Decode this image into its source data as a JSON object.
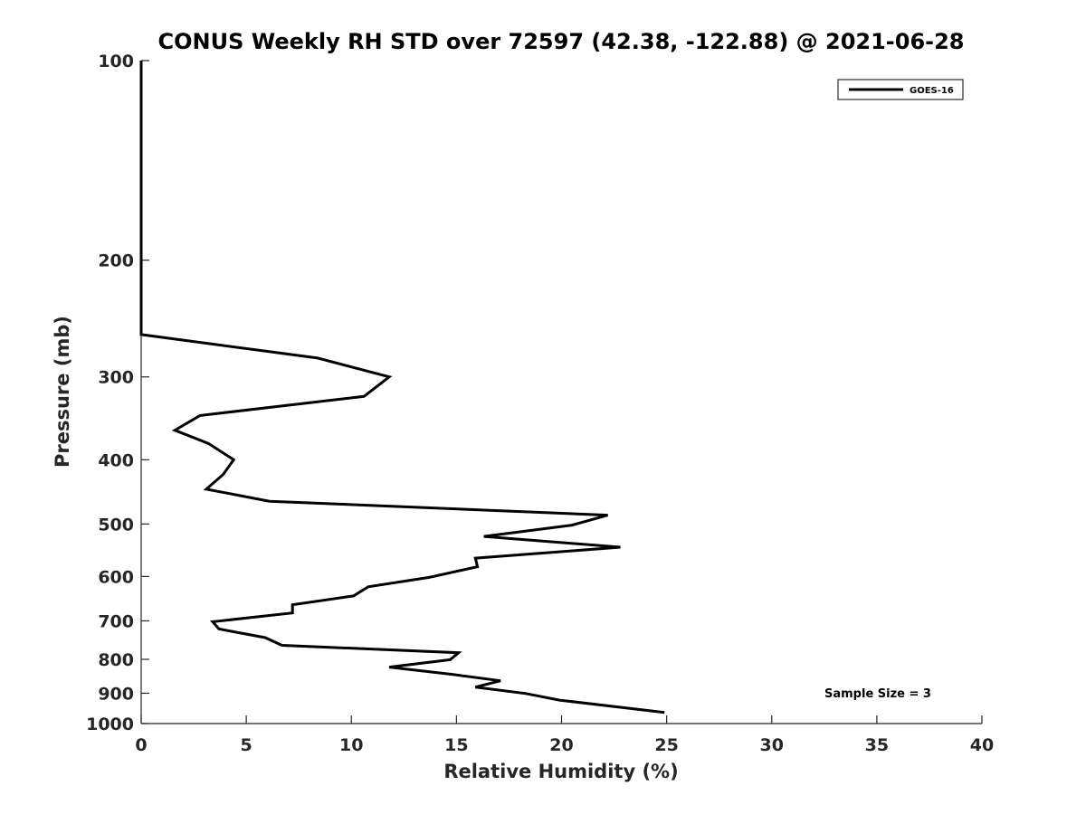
{
  "chart_data": {
    "type": "line",
    "title": "CONUS Weekly RH STD over 72597 (42.38, -122.88) @ 2021-06-28",
    "xlabel": "Relative Humidity (%)",
    "ylabel": "Pressure (mb)",
    "xlim": [
      0,
      40
    ],
    "ylim": [
      100,
      1000
    ],
    "y_scale": "log",
    "y_reversed": true,
    "x_ticks": [
      "0",
      "5",
      "10",
      "15",
      "20",
      "25",
      "30",
      "35",
      "40"
    ],
    "y_ticks": [
      "100",
      "200",
      "300",
      "400",
      "500",
      "600",
      "700",
      "800",
      "900",
      "1000"
    ],
    "grid": false,
    "legend_position": "top-right",
    "annotation": "Sample Size = 3",
    "series": [
      {
        "name": "GOES-16",
        "color": "#000000",
        "points": [
          {
            "x": 0,
            "y": 100
          },
          {
            "x": 0,
            "y": 200
          },
          {
            "x": 0,
            "y": 259
          },
          {
            "x": 8.4,
            "y": 281
          },
          {
            "x": 11.8,
            "y": 300
          },
          {
            "x": 10.6,
            "y": 321
          },
          {
            "x": 2.8,
            "y": 343
          },
          {
            "x": 1.6,
            "y": 361
          },
          {
            "x": 3.2,
            "y": 378
          },
          {
            "x": 4.4,
            "y": 400
          },
          {
            "x": 3.9,
            "y": 421
          },
          {
            "x": 3.1,
            "y": 443
          },
          {
            "x": 6.1,
            "y": 462
          },
          {
            "x": 22.2,
            "y": 485
          },
          {
            "x": 20.5,
            "y": 502
          },
          {
            "x": 16.3,
            "y": 522
          },
          {
            "x": 22.8,
            "y": 542
          },
          {
            "x": 15.9,
            "y": 563
          },
          {
            "x": 16.0,
            "y": 580
          },
          {
            "x": 13.7,
            "y": 602
          },
          {
            "x": 10.8,
            "y": 622
          },
          {
            "x": 10.1,
            "y": 642
          },
          {
            "x": 7.2,
            "y": 662
          },
          {
            "x": 7.2,
            "y": 681
          },
          {
            "x": 3.4,
            "y": 702
          },
          {
            "x": 3.7,
            "y": 720
          },
          {
            "x": 5.9,
            "y": 742
          },
          {
            "x": 6.7,
            "y": 762
          },
          {
            "x": 15.1,
            "y": 782
          },
          {
            "x": 14.7,
            "y": 801
          },
          {
            "x": 11.8,
            "y": 822
          },
          {
            "x": 14.8,
            "y": 843
          },
          {
            "x": 17.1,
            "y": 862
          },
          {
            "x": 15.9,
            "y": 881
          },
          {
            "x": 18.3,
            "y": 901
          },
          {
            "x": 19.9,
            "y": 922
          },
          {
            "x": 24.9,
            "y": 962
          }
        ]
      }
    ]
  }
}
